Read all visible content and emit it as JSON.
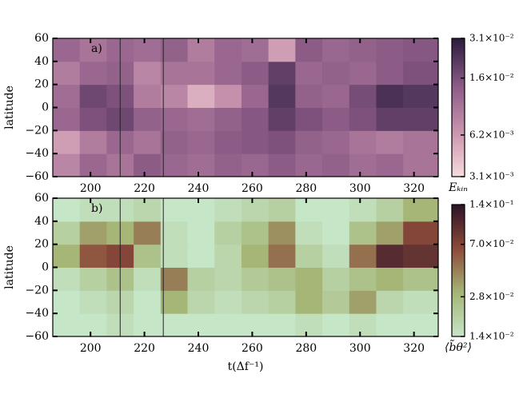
{
  "chart_data": [
    {
      "type": "heatmap",
      "panel_label": "a)",
      "ylabel": "latitude",
      "xlim": [
        186,
        329
      ],
      "ylim": [
        -60,
        60
      ],
      "xticks": [
        200,
        220,
        240,
        260,
        280,
        300,
        320
      ],
      "yticks": [
        {
          "value": -60,
          "label": "−60"
        },
        {
          "value": -40,
          "label": "−40"
        },
        {
          "value": -20,
          "label": "−20"
        },
        0,
        20,
        40,
        60
      ],
      "x_edges": [
        186,
        196,
        206,
        216,
        226,
        236,
        246,
        256,
        266,
        276,
        286,
        296,
        306,
        316,
        329
      ],
      "y_edges": [
        -60,
        -40,
        -20,
        0,
        20,
        40,
        60
      ],
      "z": [
        [
          0.008,
          0.012,
          0.01,
          0.014,
          0.012,
          0.011,
          0.013,
          0.012,
          0.014,
          0.012,
          0.013,
          0.011,
          0.012,
          0.01
        ],
        [
          0.006,
          0.009,
          0.012,
          0.01,
          0.013,
          0.012,
          0.014,
          0.015,
          0.016,
          0.013,
          0.012,
          0.01,
          0.009,
          0.01
        ],
        [
          0.012,
          0.016,
          0.018,
          0.013,
          0.012,
          0.011,
          0.013,
          0.015,
          0.02,
          0.016,
          0.014,
          0.016,
          0.02,
          0.02
        ],
        [
          0.011,
          0.018,
          0.016,
          0.009,
          0.008,
          0.005,
          0.007,
          0.012,
          0.022,
          0.013,
          0.012,
          0.017,
          0.024,
          0.022
        ],
        [
          0.009,
          0.012,
          0.013,
          0.008,
          0.01,
          0.01,
          0.012,
          0.014,
          0.02,
          0.012,
          0.013,
          0.012,
          0.014,
          0.016
        ],
        [
          0.012,
          0.01,
          0.012,
          0.011,
          0.013,
          0.009,
          0.012,
          0.011,
          0.006,
          0.014,
          0.012,
          0.013,
          0.014,
          0.015
        ]
      ],
      "vlines": [
        211,
        227
      ],
      "colorbar": {
        "label": "Eₖᵢₙ",
        "log": true,
        "lim": [
          0.0031,
          0.031
        ],
        "ticks": [
          {
            "value": 0.0031,
            "label": "3.1×10⁻³"
          },
          {
            "value": 0.0062,
            "label": "6.2×10⁻³"
          },
          {
            "value": 0.016,
            "label": "1.6×10⁻²"
          },
          {
            "value": 0.031,
            "label": "3.1×10⁻²"
          }
        ],
        "colors": [
          "#f6dcdc",
          "#c993ae",
          "#8a5a86",
          "#2b1c3c"
        ]
      }
    },
    {
      "type": "heatmap",
      "panel_label": "b)",
      "ylabel": "latitude",
      "xlabel": "t(Δf⁻¹)",
      "xlim": [
        186,
        329
      ],
      "ylim": [
        -60,
        60
      ],
      "xticks": [
        200,
        220,
        240,
        260,
        280,
        300,
        320
      ],
      "yticks": [
        {
          "value": -60,
          "label": "−60"
        },
        {
          "value": -40,
          "label": "−40"
        },
        {
          "value": -20,
          "label": "−20"
        },
        0,
        20,
        40,
        60
      ],
      "x_edges": [
        186,
        196,
        206,
        216,
        226,
        236,
        246,
        256,
        266,
        276,
        286,
        296,
        306,
        316,
        329
      ],
      "y_edges": [
        -60,
        -40,
        -20,
        0,
        20,
        40,
        60
      ],
      "z": [
        [
          0.014,
          0.014,
          0.016,
          0.014,
          0.014,
          0.014,
          0.014,
          0.014,
          0.014,
          0.016,
          0.014,
          0.016,
          0.014,
          0.014
        ],
        [
          0.014,
          0.016,
          0.018,
          0.014,
          0.03,
          0.018,
          0.016,
          0.018,
          0.02,
          0.03,
          0.022,
          0.035,
          0.018,
          0.016
        ],
        [
          0.016,
          0.02,
          0.025,
          0.016,
          0.045,
          0.02,
          0.018,
          0.022,
          0.025,
          0.03,
          0.02,
          0.025,
          0.03,
          0.025
        ],
        [
          0.03,
          0.06,
          0.07,
          0.025,
          0.016,
          0.014,
          0.018,
          0.03,
          0.05,
          0.02,
          0.016,
          0.05,
          0.1,
          0.09
        ],
        [
          0.02,
          0.035,
          0.03,
          0.045,
          0.016,
          0.014,
          0.02,
          0.025,
          0.04,
          0.016,
          0.014,
          0.025,
          0.035,
          0.07
        ],
        [
          0.014,
          0.016,
          0.016,
          0.018,
          0.014,
          0.014,
          0.016,
          0.018,
          0.02,
          0.014,
          0.014,
          0.016,
          0.02,
          0.03
        ]
      ],
      "vlines": [
        211,
        227
      ],
      "colorbar": {
        "label": "⟨b̃θ²⟩",
        "log": true,
        "lim": [
          0.014,
          0.14
        ],
        "ticks": [
          {
            "value": 0.014,
            "label": "1.4×10⁻²"
          },
          {
            "value": 0.028,
            "label": "2.8×10⁻²"
          },
          {
            "value": 0.07,
            "label": "7.0×10⁻²"
          },
          {
            "value": 0.14,
            "label": "1.4×10⁻¹"
          }
        ],
        "colors": [
          "#c6e6c8",
          "#a5b676",
          "#8c4b3a",
          "#2e1428"
        ]
      }
    }
  ]
}
